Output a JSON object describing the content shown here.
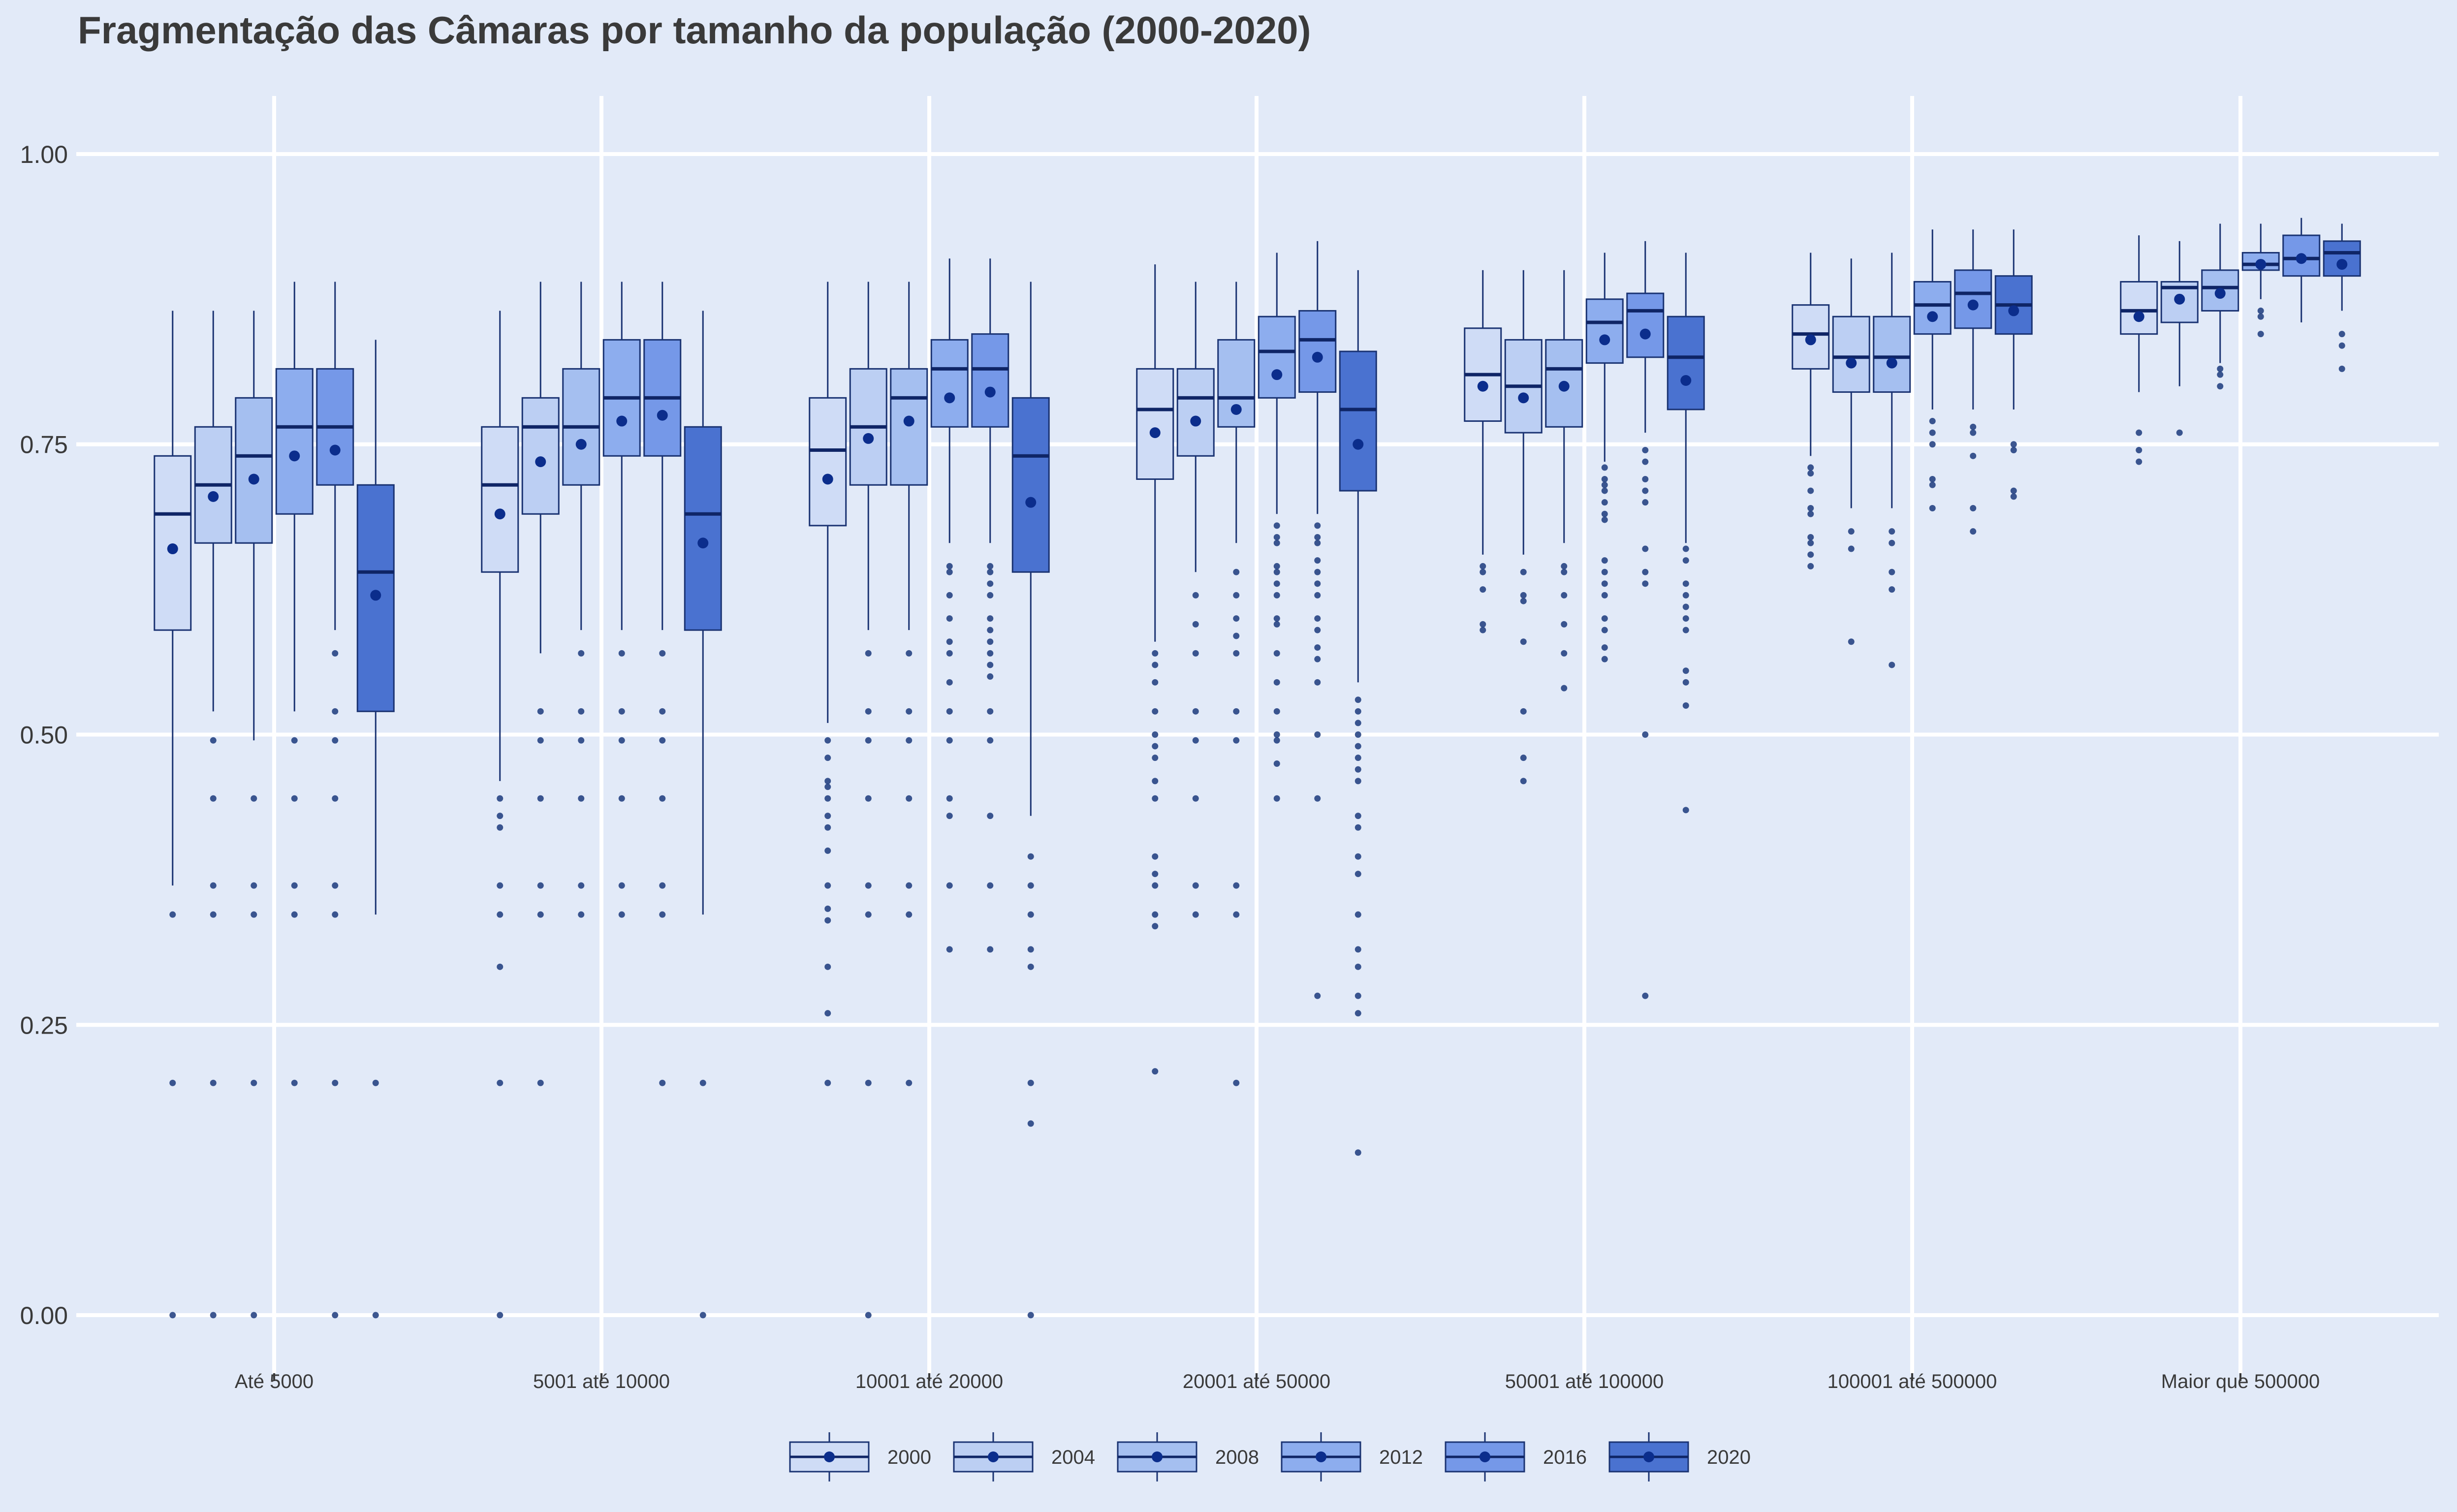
{
  "chart_data": {
    "type": "box",
    "title": "Fragmentação das Câmaras por tamanho da população (2000-2020)",
    "xlabel": "",
    "ylabel": "",
    "ylim": [
      -0.05,
      1.05
    ],
    "yticks": [
      0.0,
      0.25,
      0.5,
      0.75,
      1.0
    ],
    "ytick_labels": [
      "0.00",
      "0.25",
      "0.50",
      "0.75",
      "1.00"
    ],
    "grid": true,
    "legend_position": "bottom",
    "categories": [
      "Até 5000",
      "5001 até 10000",
      "10001 até 20000",
      "20001 até 50000",
      "50001 até 100000",
      "100001 até 500000",
      "Maior que 500000"
    ],
    "series": [
      {
        "name": "2000",
        "color": "#cfdcf6",
        "stats": [
          {
            "min": 0.37,
            "q1": 0.59,
            "median": 0.69,
            "q3": 0.74,
            "max": 0.865,
            "mean": 0.66,
            "outliers": [
              0.345,
              0.2,
              0.0
            ]
          },
          {
            "min": 0.46,
            "q1": 0.64,
            "median": 0.715,
            "q3": 0.765,
            "max": 0.865,
            "mean": 0.69,
            "outliers": [
              0.445,
              0.43,
              0.42,
              0.37,
              0.345,
              0.3,
              0.2,
              0.0
            ]
          },
          {
            "min": 0.51,
            "q1": 0.68,
            "median": 0.745,
            "q3": 0.79,
            "max": 0.89,
            "mean": 0.72,
            "outliers": [
              0.495,
              0.48,
              0.46,
              0.455,
              0.445,
              0.43,
              0.42,
              0.4,
              0.37,
              0.35,
              0.34,
              0.3,
              0.26,
              0.2
            ]
          },
          {
            "min": 0.58,
            "q1": 0.72,
            "median": 0.78,
            "q3": 0.815,
            "max": 0.905,
            "mean": 0.76,
            "outliers": [
              0.57,
              0.56,
              0.545,
              0.52,
              0.5,
              0.49,
              0.48,
              0.46,
              0.445,
              0.395,
              0.38,
              0.37,
              0.345,
              0.335,
              0.21
            ]
          },
          {
            "min": 0.655,
            "q1": 0.77,
            "median": 0.81,
            "q3": 0.85,
            "max": 0.9,
            "mean": 0.8,
            "outliers": [
              0.645,
              0.64,
              0.625,
              0.595,
              0.59
            ]
          },
          {
            "min": 0.74,
            "q1": 0.815,
            "median": 0.845,
            "q3": 0.87,
            "max": 0.915,
            "mean": 0.84,
            "outliers": [
              0.73,
              0.725,
              0.71,
              0.695,
              0.69,
              0.67,
              0.665,
              0.655,
              0.645
            ]
          },
          {
            "min": 0.795,
            "q1": 0.845,
            "median": 0.865,
            "q3": 0.89,
            "max": 0.93,
            "mean": 0.86,
            "outliers": [
              0.76,
              0.745,
              0.735
            ]
          }
        ]
      },
      {
        "name": "2004",
        "color": "#bccff3",
        "stats": [
          {
            "min": 0.52,
            "q1": 0.665,
            "median": 0.715,
            "q3": 0.765,
            "max": 0.865,
            "mean": 0.705,
            "outliers": [
              0.495,
              0.445,
              0.37,
              0.345,
              0.2,
              0.0
            ]
          },
          {
            "min": 0.57,
            "q1": 0.69,
            "median": 0.765,
            "q3": 0.79,
            "max": 0.89,
            "mean": 0.735,
            "outliers": [
              0.52,
              0.495,
              0.445,
              0.37,
              0.345,
              0.2
            ]
          },
          {
            "min": 0.59,
            "q1": 0.715,
            "median": 0.765,
            "q3": 0.815,
            "max": 0.89,
            "mean": 0.755,
            "outliers": [
              0.57,
              0.52,
              0.495,
              0.445,
              0.37,
              0.345,
              0.2,
              0.0
            ]
          },
          {
            "min": 0.64,
            "q1": 0.74,
            "median": 0.79,
            "q3": 0.815,
            "max": 0.89,
            "mean": 0.77,
            "outliers": [
              0.62,
              0.595,
              0.57,
              0.52,
              0.495,
              0.445,
              0.37,
              0.345
            ]
          },
          {
            "min": 0.655,
            "q1": 0.76,
            "median": 0.8,
            "q3": 0.84,
            "max": 0.9,
            "mean": 0.79,
            "outliers": [
              0.64,
              0.62,
              0.615,
              0.58,
              0.52,
              0.48,
              0.46
            ]
          },
          {
            "min": 0.695,
            "q1": 0.795,
            "median": 0.825,
            "q3": 0.86,
            "max": 0.91,
            "mean": 0.82,
            "outliers": [
              0.675,
              0.66,
              0.58
            ]
          },
          {
            "min": 0.8,
            "q1": 0.855,
            "median": 0.885,
            "q3": 0.89,
            "max": 0.925,
            "mean": 0.875,
            "outliers": [
              0.76
            ]
          }
        ]
      },
      {
        "name": "2008",
        "color": "#a5bff0",
        "stats": [
          {
            "min": 0.495,
            "q1": 0.665,
            "median": 0.74,
            "q3": 0.79,
            "max": 0.865,
            "mean": 0.72,
            "outliers": [
              0.445,
              0.37,
              0.345,
              0.2,
              0.0
            ]
          },
          {
            "min": 0.59,
            "q1": 0.715,
            "median": 0.765,
            "q3": 0.815,
            "max": 0.89,
            "mean": 0.75,
            "outliers": [
              0.57,
              0.52,
              0.495,
              0.445,
              0.37,
              0.345
            ]
          },
          {
            "min": 0.59,
            "q1": 0.715,
            "median": 0.79,
            "q3": 0.815,
            "max": 0.89,
            "mean": 0.77,
            "outliers": [
              0.57,
              0.52,
              0.495,
              0.445,
              0.37,
              0.345,
              0.2
            ]
          },
          {
            "min": 0.665,
            "q1": 0.765,
            "median": 0.79,
            "q3": 0.84,
            "max": 0.89,
            "mean": 0.78,
            "outliers": [
              0.64,
              0.62,
              0.6,
              0.585,
              0.57,
              0.52,
              0.495,
              0.37,
              0.345,
              0.2
            ]
          },
          {
            "min": 0.665,
            "q1": 0.765,
            "median": 0.815,
            "q3": 0.84,
            "max": 0.9,
            "mean": 0.8,
            "outliers": [
              0.645,
              0.64,
              0.62,
              0.595,
              0.57,
              0.54
            ]
          },
          {
            "min": 0.695,
            "q1": 0.795,
            "median": 0.825,
            "q3": 0.86,
            "max": 0.915,
            "mean": 0.82,
            "outliers": [
              0.675,
              0.665,
              0.64,
              0.625,
              0.56
            ]
          },
          {
            "min": 0.82,
            "q1": 0.865,
            "median": 0.885,
            "q3": 0.9,
            "max": 0.94,
            "mean": 0.88,
            "outliers": [
              0.815,
              0.81,
              0.8
            ]
          }
        ]
      },
      {
        "name": "2012",
        "color": "#8dadee",
        "stats": [
          {
            "min": 0.52,
            "q1": 0.69,
            "median": 0.765,
            "q3": 0.815,
            "max": 0.89,
            "mean": 0.74,
            "outliers": [
              0.495,
              0.445,
              0.37,
              0.345,
              0.2
            ]
          },
          {
            "min": 0.59,
            "q1": 0.74,
            "median": 0.79,
            "q3": 0.84,
            "max": 0.89,
            "mean": 0.77,
            "outliers": [
              0.57,
              0.52,
              0.495,
              0.445,
              0.37,
              0.345
            ]
          },
          {
            "min": 0.665,
            "q1": 0.765,
            "median": 0.815,
            "q3": 0.84,
            "max": 0.91,
            "mean": 0.79,
            "outliers": [
              0.645,
              0.64,
              0.62,
              0.6,
              0.58,
              0.57,
              0.545,
              0.52,
              0.495,
              0.445,
              0.43,
              0.37,
              0.315
            ]
          },
          {
            "min": 0.69,
            "q1": 0.79,
            "median": 0.83,
            "q3": 0.86,
            "max": 0.915,
            "mean": 0.81,
            "outliers": [
              0.68,
              0.67,
              0.665,
              0.645,
              0.64,
              0.63,
              0.62,
              0.6,
              0.595,
              0.57,
              0.545,
              0.52,
              0.5,
              0.495,
              0.475,
              0.445
            ]
          },
          {
            "min": 0.735,
            "q1": 0.82,
            "median": 0.855,
            "q3": 0.875,
            "max": 0.915,
            "mean": 0.84,
            "outliers": [
              0.73,
              0.72,
              0.715,
              0.71,
              0.7,
              0.69,
              0.685,
              0.65,
              0.64,
              0.63,
              0.62,
              0.6,
              0.59,
              0.575,
              0.565
            ]
          },
          {
            "min": 0.78,
            "q1": 0.845,
            "median": 0.87,
            "q3": 0.89,
            "max": 0.935,
            "mean": 0.86,
            "outliers": [
              0.77,
              0.76,
              0.75,
              0.72,
              0.715,
              0.695
            ]
          },
          {
            "min": 0.875,
            "q1": 0.9,
            "median": 0.905,
            "q3": 0.915,
            "max": 0.94,
            "mean": 0.905,
            "outliers": [
              0.865,
              0.86,
              0.845
            ]
          }
        ]
      },
      {
        "name": "2016",
        "color": "#7598e8",
        "stats": [
          {
            "min": 0.59,
            "q1": 0.715,
            "median": 0.765,
            "q3": 0.815,
            "max": 0.89,
            "mean": 0.745,
            "outliers": [
              0.57,
              0.52,
              0.495,
              0.445,
              0.37,
              0.345,
              0.2,
              0.0
            ]
          },
          {
            "min": 0.59,
            "q1": 0.74,
            "median": 0.79,
            "q3": 0.84,
            "max": 0.89,
            "mean": 0.775,
            "outliers": [
              0.57,
              0.52,
              0.495,
              0.445,
              0.37,
              0.345,
              0.2
            ]
          },
          {
            "min": 0.665,
            "q1": 0.765,
            "median": 0.815,
            "q3": 0.845,
            "max": 0.91,
            "mean": 0.795,
            "outliers": [
              0.645,
              0.64,
              0.63,
              0.62,
              0.6,
              0.59,
              0.58,
              0.57,
              0.56,
              0.55,
              0.52,
              0.495,
              0.43,
              0.37,
              0.315
            ]
          },
          {
            "min": 0.69,
            "q1": 0.795,
            "median": 0.84,
            "q3": 0.865,
            "max": 0.925,
            "mean": 0.825,
            "outliers": [
              0.68,
              0.67,
              0.665,
              0.65,
              0.64,
              0.63,
              0.62,
              0.6,
              0.59,
              0.575,
              0.565,
              0.545,
              0.5,
              0.445,
              0.275
            ]
          },
          {
            "min": 0.76,
            "q1": 0.825,
            "median": 0.865,
            "q3": 0.88,
            "max": 0.925,
            "mean": 0.845,
            "outliers": [
              0.745,
              0.735,
              0.72,
              0.71,
              0.7,
              0.66,
              0.64,
              0.63,
              0.5,
              0.275
            ]
          },
          {
            "min": 0.78,
            "q1": 0.85,
            "median": 0.88,
            "q3": 0.9,
            "max": 0.935,
            "mean": 0.87,
            "outliers": [
              0.765,
              0.76,
              0.74,
              0.695,
              0.675
            ]
          },
          {
            "min": 0.855,
            "q1": 0.895,
            "median": 0.91,
            "q3": 0.93,
            "max": 0.945,
            "mean": 0.91,
            "outliers": []
          }
        ]
      },
      {
        "name": "2020",
        "color": "#4a72d0",
        "stats": [
          {
            "min": 0.345,
            "q1": 0.52,
            "median": 0.64,
            "q3": 0.715,
            "max": 0.84,
            "mean": 0.62,
            "outliers": [
              0.2,
              0.0
            ]
          },
          {
            "min": 0.345,
            "q1": 0.59,
            "median": 0.69,
            "q3": 0.765,
            "max": 0.865,
            "mean": 0.665,
            "outliers": [
              0.2,
              0.0
            ]
          },
          {
            "min": 0.43,
            "q1": 0.64,
            "median": 0.74,
            "q3": 0.79,
            "max": 0.89,
            "mean": 0.7,
            "outliers": [
              0.395,
              0.37,
              0.345,
              0.315,
              0.3,
              0.2,
              0.165,
              0.0
            ]
          },
          {
            "min": 0.545,
            "q1": 0.71,
            "median": 0.78,
            "q3": 0.83,
            "max": 0.9,
            "mean": 0.75,
            "outliers": [
              0.53,
              0.52,
              0.51,
              0.5,
              0.49,
              0.48,
              0.47,
              0.46,
              0.43,
              0.42,
              0.395,
              0.38,
              0.345,
              0.315,
              0.3,
              0.275,
              0.26,
              0.14
            ]
          },
          {
            "min": 0.665,
            "q1": 0.78,
            "median": 0.825,
            "q3": 0.86,
            "max": 0.915,
            "mean": 0.805,
            "outliers": [
              0.66,
              0.65,
              0.63,
              0.62,
              0.61,
              0.6,
              0.59,
              0.555,
              0.545,
              0.525,
              0.435
            ]
          },
          {
            "min": 0.78,
            "q1": 0.845,
            "median": 0.87,
            "q3": 0.895,
            "max": 0.935,
            "mean": 0.865,
            "outliers": [
              0.75,
              0.745,
              0.71,
              0.705
            ]
          },
          {
            "min": 0.865,
            "q1": 0.895,
            "median": 0.915,
            "q3": 0.925,
            "max": 0.94,
            "mean": 0.905,
            "outliers": [
              0.845,
              0.835,
              0.815
            ]
          }
        ]
      }
    ],
    "mean_marker_color": "#0b2d8c",
    "line_color": "#1a3372",
    "grid_color": "#ffffff",
    "background": "#e2eaf8"
  }
}
